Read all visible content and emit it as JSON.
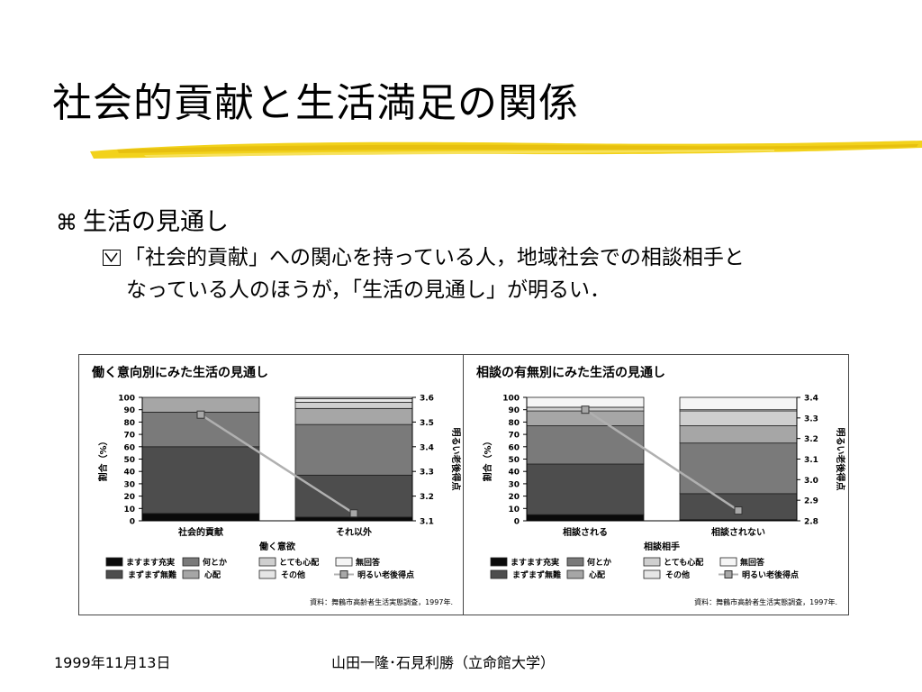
{
  "slide": {
    "title": "社会的貢献と生活満足の関係",
    "bullet_level1": "生活の見通し",
    "bullet_level2_line1": "「社会的貢献」への関心を持っている人，地域社会での相談相手と",
    "bullet_level2_line2": "なっている人のほうが，「生活の見通し」が明るい．",
    "footer_date": "1999年11月13日",
    "footer_author": "山田一隆･石見利勝（立命館大学）"
  },
  "colors": {
    "series": [
      "#0a0a0a",
      "#4d4d4d",
      "#7a7a7a",
      "#a6a6a6",
      "#cfcfcf",
      "#e6e6e6",
      "#f5f5f5"
    ],
    "line": "#b0b0b0",
    "marker": "#a8a8a8"
  },
  "chart_data": [
    {
      "type": "bar",
      "stacked": true,
      "title": "働く意向別にみた生活の見通し",
      "xlabel": "働く意欲",
      "ylabel": "割合（%）",
      "ylabel_right": "明るい老後得点",
      "ylim": [
        0,
        100
      ],
      "yticks": [
        "0",
        "10",
        "20",
        "30",
        "40",
        "50",
        "60",
        "70",
        "80",
        "90",
        "100"
      ],
      "y2lim": [
        3.1,
        3.6
      ],
      "y2ticks": [
        "3.1",
        "3.2",
        "3.3",
        "3.4",
        "3.5",
        "3.6"
      ],
      "categories": [
        "社会的貢献",
        "それ以外"
      ],
      "series": [
        {
          "name": "ますます充実",
          "values": [
            6,
            3
          ]
        },
        {
          "name": "まずまず無難",
          "values": [
            54,
            34
          ]
        },
        {
          "name": "何とか",
          "values": [
            28,
            41
          ]
        },
        {
          "name": "心配",
          "values": [
            12,
            13
          ]
        },
        {
          "name": "とても心配",
          "values": [
            0,
            5
          ]
        },
        {
          "name": "その他",
          "values": [
            0,
            3
          ]
        },
        {
          "name": "無回答",
          "values": [
            0,
            1
          ]
        }
      ],
      "line_series": {
        "name": "明るい老後得点",
        "values": [
          3.53,
          3.13
        ]
      },
      "legend": {
        "row1": [
          "ますます充実",
          "何とか",
          "とても心配",
          "無回答"
        ],
        "row2": [
          "まずまず無難",
          "心配",
          "その他",
          "明るい老後得点"
        ]
      },
      "legend_row1_keys": [
        0,
        2,
        4,
        6
      ],
      "legend_row2_keys": [
        1,
        3,
        5
      ],
      "source": "資料：舞鶴市高齢者生活実態調査，1997年."
    },
    {
      "type": "bar",
      "stacked": true,
      "title": "相談の有無別にみた生活の見通し",
      "xlabel": "相談相手",
      "ylabel": "割合（%）",
      "ylabel_right": "明るい老後得点",
      "ylim": [
        0,
        100
      ],
      "yticks": [
        "0",
        "10",
        "20",
        "30",
        "40",
        "50",
        "60",
        "70",
        "80",
        "90",
        "100"
      ],
      "y2lim": [
        2.8,
        3.4
      ],
      "y2ticks": [
        "2.8",
        "2.9",
        "3.0",
        "3.1",
        "3.2",
        "3.3",
        "3.4"
      ],
      "categories": [
        "相談される",
        "相談されない"
      ],
      "series": [
        {
          "name": "ますます充実",
          "values": [
            5,
            1
          ]
        },
        {
          "name": "まずまず無難",
          "values": [
            41,
            21
          ]
        },
        {
          "name": "何とか",
          "values": [
            31,
            41
          ]
        },
        {
          "name": "心配",
          "values": [
            12,
            14
          ]
        },
        {
          "name": "とても心配",
          "values": [
            3,
            12
          ]
        },
        {
          "name": "その他",
          "values": [
            0,
            1
          ]
        },
        {
          "name": "無回答",
          "values": [
            8,
            10
          ]
        }
      ],
      "line_series": {
        "name": "明るい老後得点",
        "values": [
          3.34,
          2.85
        ]
      },
      "legend": {
        "row1": [
          "ますます充実",
          "何とか",
          "とても心配",
          "無回答"
        ],
        "row2": [
          "まずまず無難",
          "心配",
          "その他",
          "明るい老後得点"
        ]
      },
      "legend_row1_keys": [
        0,
        2,
        4,
        6
      ],
      "legend_row2_keys": [
        1,
        3,
        5
      ],
      "source": "資料：舞鶴市高齢者生活実態調査，1997年."
    }
  ]
}
